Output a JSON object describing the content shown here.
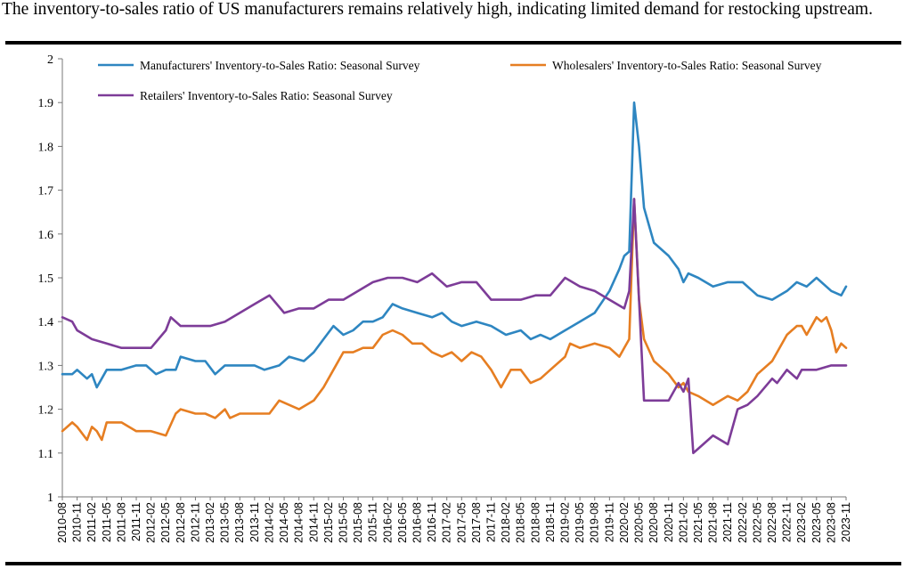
{
  "headline": "The inventory-to-sales ratio of US manufacturers remains relatively high, indicating limited demand for restocking upstream.",
  "chart_data": {
    "type": "line",
    "title": "",
    "xlabel": "",
    "ylabel": "",
    "ylim": [
      1,
      2
    ],
    "yticks": [
      "1",
      "1.1",
      "1.2",
      "1.3",
      "1.4",
      "1.5",
      "1.6",
      "1.7",
      "1.8",
      "1.9",
      "2"
    ],
    "x_start": "2010-08",
    "x_end": "2023-11",
    "x_tick_labels": [
      "2010-08",
      "2010-11",
      "2011-02",
      "2011-05",
      "2011-08",
      "2011-11",
      "2012-02",
      "2012-05",
      "2012-08",
      "2012-11",
      "2013-02",
      "2013-05",
      "2013-08",
      "2013-11",
      "2014-02",
      "2014-05",
      "2014-08",
      "2014-11",
      "2015-02",
      "2015-05",
      "2015-08",
      "2015-11",
      "2016-02",
      "2016-05",
      "2016-08",
      "2016-11",
      "2017-02",
      "2017-05",
      "2017-08",
      "2017-11",
      "2018-02",
      "2018-05",
      "2018-08",
      "2018-11",
      "2019-02",
      "2019-05",
      "2019-08",
      "2019-11",
      "2020-02",
      "2020-05",
      "2020-08",
      "2020-11",
      "2021-02",
      "2021-05",
      "2021-08",
      "2021-11",
      "2022-02",
      "2022-05",
      "2022-08",
      "2022-11",
      "2023-02",
      "2023-05",
      "2023-08",
      "2023-11"
    ],
    "grid": false,
    "legend": "top, inside plot",
    "series": [
      {
        "name": "Manufacturers' Inventory-to-Sales Ratio: Seasonal Survey",
        "color": "#2E86C1",
        "points": [
          [
            "2010-08",
            1.28
          ],
          [
            "2010-10",
            1.28
          ],
          [
            "2010-11",
            1.29
          ],
          [
            "2011-01",
            1.27
          ],
          [
            "2011-02",
            1.28
          ],
          [
            "2011-03",
            1.25
          ],
          [
            "2011-05",
            1.29
          ],
          [
            "2011-08",
            1.29
          ],
          [
            "2011-11",
            1.3
          ],
          [
            "2012-01",
            1.3
          ],
          [
            "2012-03",
            1.28
          ],
          [
            "2012-05",
            1.29
          ],
          [
            "2012-07",
            1.29
          ],
          [
            "2012-08",
            1.32
          ],
          [
            "2012-11",
            1.31
          ],
          [
            "2013-01",
            1.31
          ],
          [
            "2013-03",
            1.28
          ],
          [
            "2013-05",
            1.3
          ],
          [
            "2013-08",
            1.3
          ],
          [
            "2013-11",
            1.3
          ],
          [
            "2014-01",
            1.29
          ],
          [
            "2014-04",
            1.3
          ],
          [
            "2014-06",
            1.32
          ],
          [
            "2014-09",
            1.31
          ],
          [
            "2014-11",
            1.33
          ],
          [
            "2015-01",
            1.36
          ],
          [
            "2015-03",
            1.39
          ],
          [
            "2015-05",
            1.37
          ],
          [
            "2015-07",
            1.38
          ],
          [
            "2015-09",
            1.4
          ],
          [
            "2015-11",
            1.4
          ],
          [
            "2016-01",
            1.41
          ],
          [
            "2016-03",
            1.44
          ],
          [
            "2016-05",
            1.43
          ],
          [
            "2016-08",
            1.42
          ],
          [
            "2016-11",
            1.41
          ],
          [
            "2017-01",
            1.42
          ],
          [
            "2017-03",
            1.4
          ],
          [
            "2017-05",
            1.39
          ],
          [
            "2017-08",
            1.4
          ],
          [
            "2017-11",
            1.39
          ],
          [
            "2018-02",
            1.37
          ],
          [
            "2018-05",
            1.38
          ],
          [
            "2018-07",
            1.36
          ],
          [
            "2018-09",
            1.37
          ],
          [
            "2018-11",
            1.36
          ],
          [
            "2019-02",
            1.38
          ],
          [
            "2019-05",
            1.4
          ],
          [
            "2019-08",
            1.42
          ],
          [
            "2019-11",
            1.47
          ],
          [
            "2020-01",
            1.52
          ],
          [
            "2020-02",
            1.55
          ],
          [
            "2020-03",
            1.56
          ],
          [
            "2020-04",
            1.9
          ],
          [
            "2020-05",
            1.8
          ],
          [
            "2020-06",
            1.66
          ],
          [
            "2020-08",
            1.58
          ],
          [
            "2020-11",
            1.55
          ],
          [
            "2021-01",
            1.52
          ],
          [
            "2021-02",
            1.49
          ],
          [
            "2021-03",
            1.51
          ],
          [
            "2021-05",
            1.5
          ],
          [
            "2021-08",
            1.48
          ],
          [
            "2021-11",
            1.49
          ],
          [
            "2022-02",
            1.49
          ],
          [
            "2022-05",
            1.46
          ],
          [
            "2022-08",
            1.45
          ],
          [
            "2022-11",
            1.47
          ],
          [
            "2023-01",
            1.49
          ],
          [
            "2023-03",
            1.48
          ],
          [
            "2023-05",
            1.5
          ],
          [
            "2023-08",
            1.47
          ],
          [
            "2023-10",
            1.46
          ],
          [
            "2023-11",
            1.48
          ]
        ]
      },
      {
        "name": "Wholesalers' Inventory-to-Sales Ratio: Seasonal Survey",
        "color": "#E67E22",
        "points": [
          [
            "2010-08",
            1.15
          ],
          [
            "2010-10",
            1.17
          ],
          [
            "2010-11",
            1.16
          ],
          [
            "2011-01",
            1.13
          ],
          [
            "2011-02",
            1.16
          ],
          [
            "2011-03",
            1.15
          ],
          [
            "2011-04",
            1.13
          ],
          [
            "2011-05",
            1.17
          ],
          [
            "2011-08",
            1.17
          ],
          [
            "2011-11",
            1.15
          ],
          [
            "2012-02",
            1.15
          ],
          [
            "2012-05",
            1.14
          ],
          [
            "2012-07",
            1.19
          ],
          [
            "2012-08",
            1.2
          ],
          [
            "2012-11",
            1.19
          ],
          [
            "2013-01",
            1.19
          ],
          [
            "2013-03",
            1.18
          ],
          [
            "2013-05",
            1.2
          ],
          [
            "2013-06",
            1.18
          ],
          [
            "2013-08",
            1.19
          ],
          [
            "2013-11",
            1.19
          ],
          [
            "2014-02",
            1.19
          ],
          [
            "2014-04",
            1.22
          ],
          [
            "2014-06",
            1.21
          ],
          [
            "2014-08",
            1.2
          ],
          [
            "2014-11",
            1.22
          ],
          [
            "2015-01",
            1.25
          ],
          [
            "2015-03",
            1.29
          ],
          [
            "2015-05",
            1.33
          ],
          [
            "2015-07",
            1.33
          ],
          [
            "2015-09",
            1.34
          ],
          [
            "2015-11",
            1.34
          ],
          [
            "2016-01",
            1.37
          ],
          [
            "2016-03",
            1.38
          ],
          [
            "2016-05",
            1.37
          ],
          [
            "2016-07",
            1.35
          ],
          [
            "2016-09",
            1.35
          ],
          [
            "2016-11",
            1.33
          ],
          [
            "2017-01",
            1.32
          ],
          [
            "2017-03",
            1.33
          ],
          [
            "2017-05",
            1.31
          ],
          [
            "2017-07",
            1.33
          ],
          [
            "2017-09",
            1.32
          ],
          [
            "2017-11",
            1.29
          ],
          [
            "2018-01",
            1.25
          ],
          [
            "2018-03",
            1.29
          ],
          [
            "2018-05",
            1.29
          ],
          [
            "2018-07",
            1.26
          ],
          [
            "2018-09",
            1.27
          ],
          [
            "2018-11",
            1.29
          ],
          [
            "2019-02",
            1.32
          ],
          [
            "2019-03",
            1.35
          ],
          [
            "2019-05",
            1.34
          ],
          [
            "2019-08",
            1.35
          ],
          [
            "2019-11",
            1.34
          ],
          [
            "2020-01",
            1.32
          ],
          [
            "2020-02",
            1.34
          ],
          [
            "2020-03",
            1.36
          ],
          [
            "2020-04",
            1.68
          ],
          [
            "2020-05",
            1.45
          ],
          [
            "2020-06",
            1.36
          ],
          [
            "2020-08",
            1.31
          ],
          [
            "2020-11",
            1.28
          ],
          [
            "2021-01",
            1.25
          ],
          [
            "2021-02",
            1.26
          ],
          [
            "2021-03",
            1.24
          ],
          [
            "2021-05",
            1.23
          ],
          [
            "2021-08",
            1.21
          ],
          [
            "2021-11",
            1.23
          ],
          [
            "2022-01",
            1.22
          ],
          [
            "2022-03",
            1.24
          ],
          [
            "2022-05",
            1.28
          ],
          [
            "2022-08",
            1.31
          ],
          [
            "2022-11",
            1.37
          ],
          [
            "2023-01",
            1.39
          ],
          [
            "2023-02",
            1.39
          ],
          [
            "2023-03",
            1.37
          ],
          [
            "2023-05",
            1.41
          ],
          [
            "2023-06",
            1.4
          ],
          [
            "2023-07",
            1.41
          ],
          [
            "2023-08",
            1.38
          ],
          [
            "2023-09",
            1.33
          ],
          [
            "2023-10",
            1.35
          ],
          [
            "2023-11",
            1.34
          ]
        ]
      },
      {
        "name": "Retailers' Inventory-to-Sales Ratio: Seasonal Survey",
        "color": "#7D3C98",
        "points": [
          [
            "2010-08",
            1.41
          ],
          [
            "2010-10",
            1.4
          ],
          [
            "2010-11",
            1.38
          ],
          [
            "2011-02",
            1.36
          ],
          [
            "2011-05",
            1.35
          ],
          [
            "2011-08",
            1.34
          ],
          [
            "2011-11",
            1.34
          ],
          [
            "2012-02",
            1.34
          ],
          [
            "2012-05",
            1.38
          ],
          [
            "2012-06",
            1.41
          ],
          [
            "2012-08",
            1.39
          ],
          [
            "2012-11",
            1.39
          ],
          [
            "2013-02",
            1.39
          ],
          [
            "2013-05",
            1.4
          ],
          [
            "2013-08",
            1.42
          ],
          [
            "2013-11",
            1.44
          ],
          [
            "2014-02",
            1.46
          ],
          [
            "2014-05",
            1.42
          ],
          [
            "2014-08",
            1.43
          ],
          [
            "2014-11",
            1.43
          ],
          [
            "2015-02",
            1.45
          ],
          [
            "2015-05",
            1.45
          ],
          [
            "2015-08",
            1.47
          ],
          [
            "2015-11",
            1.49
          ],
          [
            "2016-02",
            1.5
          ],
          [
            "2016-05",
            1.5
          ],
          [
            "2016-08",
            1.49
          ],
          [
            "2016-11",
            1.51
          ],
          [
            "2017-02",
            1.48
          ],
          [
            "2017-05",
            1.49
          ],
          [
            "2017-08",
            1.49
          ],
          [
            "2017-11",
            1.45
          ],
          [
            "2018-02",
            1.45
          ],
          [
            "2018-05",
            1.45
          ],
          [
            "2018-08",
            1.46
          ],
          [
            "2018-11",
            1.46
          ],
          [
            "2019-02",
            1.5
          ],
          [
            "2019-05",
            1.48
          ],
          [
            "2019-08",
            1.47
          ],
          [
            "2019-11",
            1.45
          ],
          [
            "2020-02",
            1.43
          ],
          [
            "2020-03",
            1.47
          ],
          [
            "2020-04",
            1.68
          ],
          [
            "2020-05",
            1.45
          ],
          [
            "2020-06",
            1.22
          ],
          [
            "2020-08",
            1.22
          ],
          [
            "2020-11",
            1.22
          ],
          [
            "2021-01",
            1.26
          ],
          [
            "2021-02",
            1.24
          ],
          [
            "2021-03",
            1.27
          ],
          [
            "2021-04",
            1.1
          ],
          [
            "2021-05",
            1.11
          ],
          [
            "2021-08",
            1.14
          ],
          [
            "2021-11",
            1.12
          ],
          [
            "2022-01",
            1.2
          ],
          [
            "2022-03",
            1.21
          ],
          [
            "2022-05",
            1.23
          ],
          [
            "2022-08",
            1.27
          ],
          [
            "2022-09",
            1.26
          ],
          [
            "2022-11",
            1.29
          ],
          [
            "2023-01",
            1.27
          ],
          [
            "2023-02",
            1.29
          ],
          [
            "2023-05",
            1.29
          ],
          [
            "2023-08",
            1.3
          ],
          [
            "2023-11",
            1.3
          ]
        ]
      }
    ]
  }
}
